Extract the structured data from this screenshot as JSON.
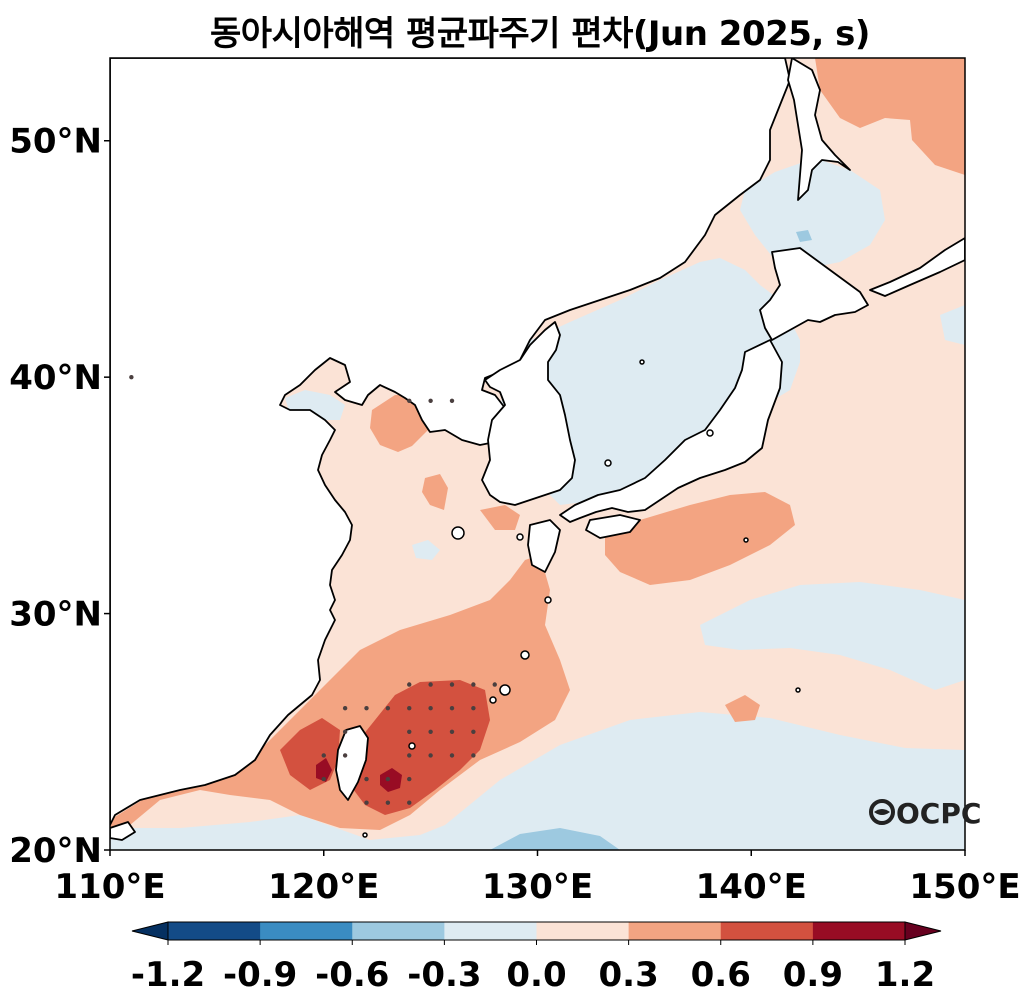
{
  "title": "동아시아해역 평균파주기 편차(Jun 2025, s)",
  "logo_text": "OCPC",
  "map": {
    "lon_range": [
      110,
      150
    ],
    "lat_range": [
      20,
      53.5
    ],
    "x_ticks": [
      {
        "value": 110,
        "label": "110°E"
      },
      {
        "value": 120,
        "label": "120°E"
      },
      {
        "value": 130,
        "label": "130°E"
      },
      {
        "value": 140,
        "label": "140°E"
      },
      {
        "value": 150,
        "label": "150°E"
      }
    ],
    "y_ticks": [
      {
        "value": 20,
        "label": "20°N"
      },
      {
        "value": 30,
        "label": "30°N"
      },
      {
        "value": 40,
        "label": "40°N"
      },
      {
        "value": 50,
        "label": "50°N"
      }
    ],
    "significance_dots": [
      [
        124,
        27
      ],
      [
        125,
        27
      ],
      [
        126,
        27
      ],
      [
        127,
        27
      ],
      [
        128,
        27
      ],
      [
        121,
        26
      ],
      [
        122,
        26
      ],
      [
        123,
        26
      ],
      [
        124,
        26
      ],
      [
        125,
        26
      ],
      [
        126,
        26
      ],
      [
        127,
        26
      ],
      [
        121,
        25
      ],
      [
        124,
        25
      ],
      [
        125,
        25
      ],
      [
        126,
        25
      ],
      [
        127,
        25
      ],
      [
        120,
        24
      ],
      [
        121,
        24
      ],
      [
        124,
        24
      ],
      [
        125,
        24
      ],
      [
        126,
        24
      ],
      [
        127,
        24
      ],
      [
        120,
        23
      ],
      [
        122,
        23
      ],
      [
        123,
        23
      ],
      [
        124,
        23
      ],
      [
        122,
        22
      ],
      [
        123,
        22
      ],
      [
        124,
        22
      ],
      [
        125,
        39
      ],
      [
        126,
        39
      ],
      [
        124,
        39
      ],
      [
        111,
        40
      ]
    ]
  },
  "colorbar": {
    "ticks": [
      "-1.2",
      "-0.9",
      "-0.6",
      "-0.3",
      "0.0",
      "0.3",
      "0.6",
      "0.9",
      "1.2"
    ],
    "colors": [
      "#134b87",
      "#3a8cc2",
      "#9dc9e0",
      "#deebf2",
      "#fbe3d6",
      "#f3a482",
      "#d3513f",
      "#980c24"
    ],
    "under_color": "#053061",
    "over_color": "#67001f"
  }
}
